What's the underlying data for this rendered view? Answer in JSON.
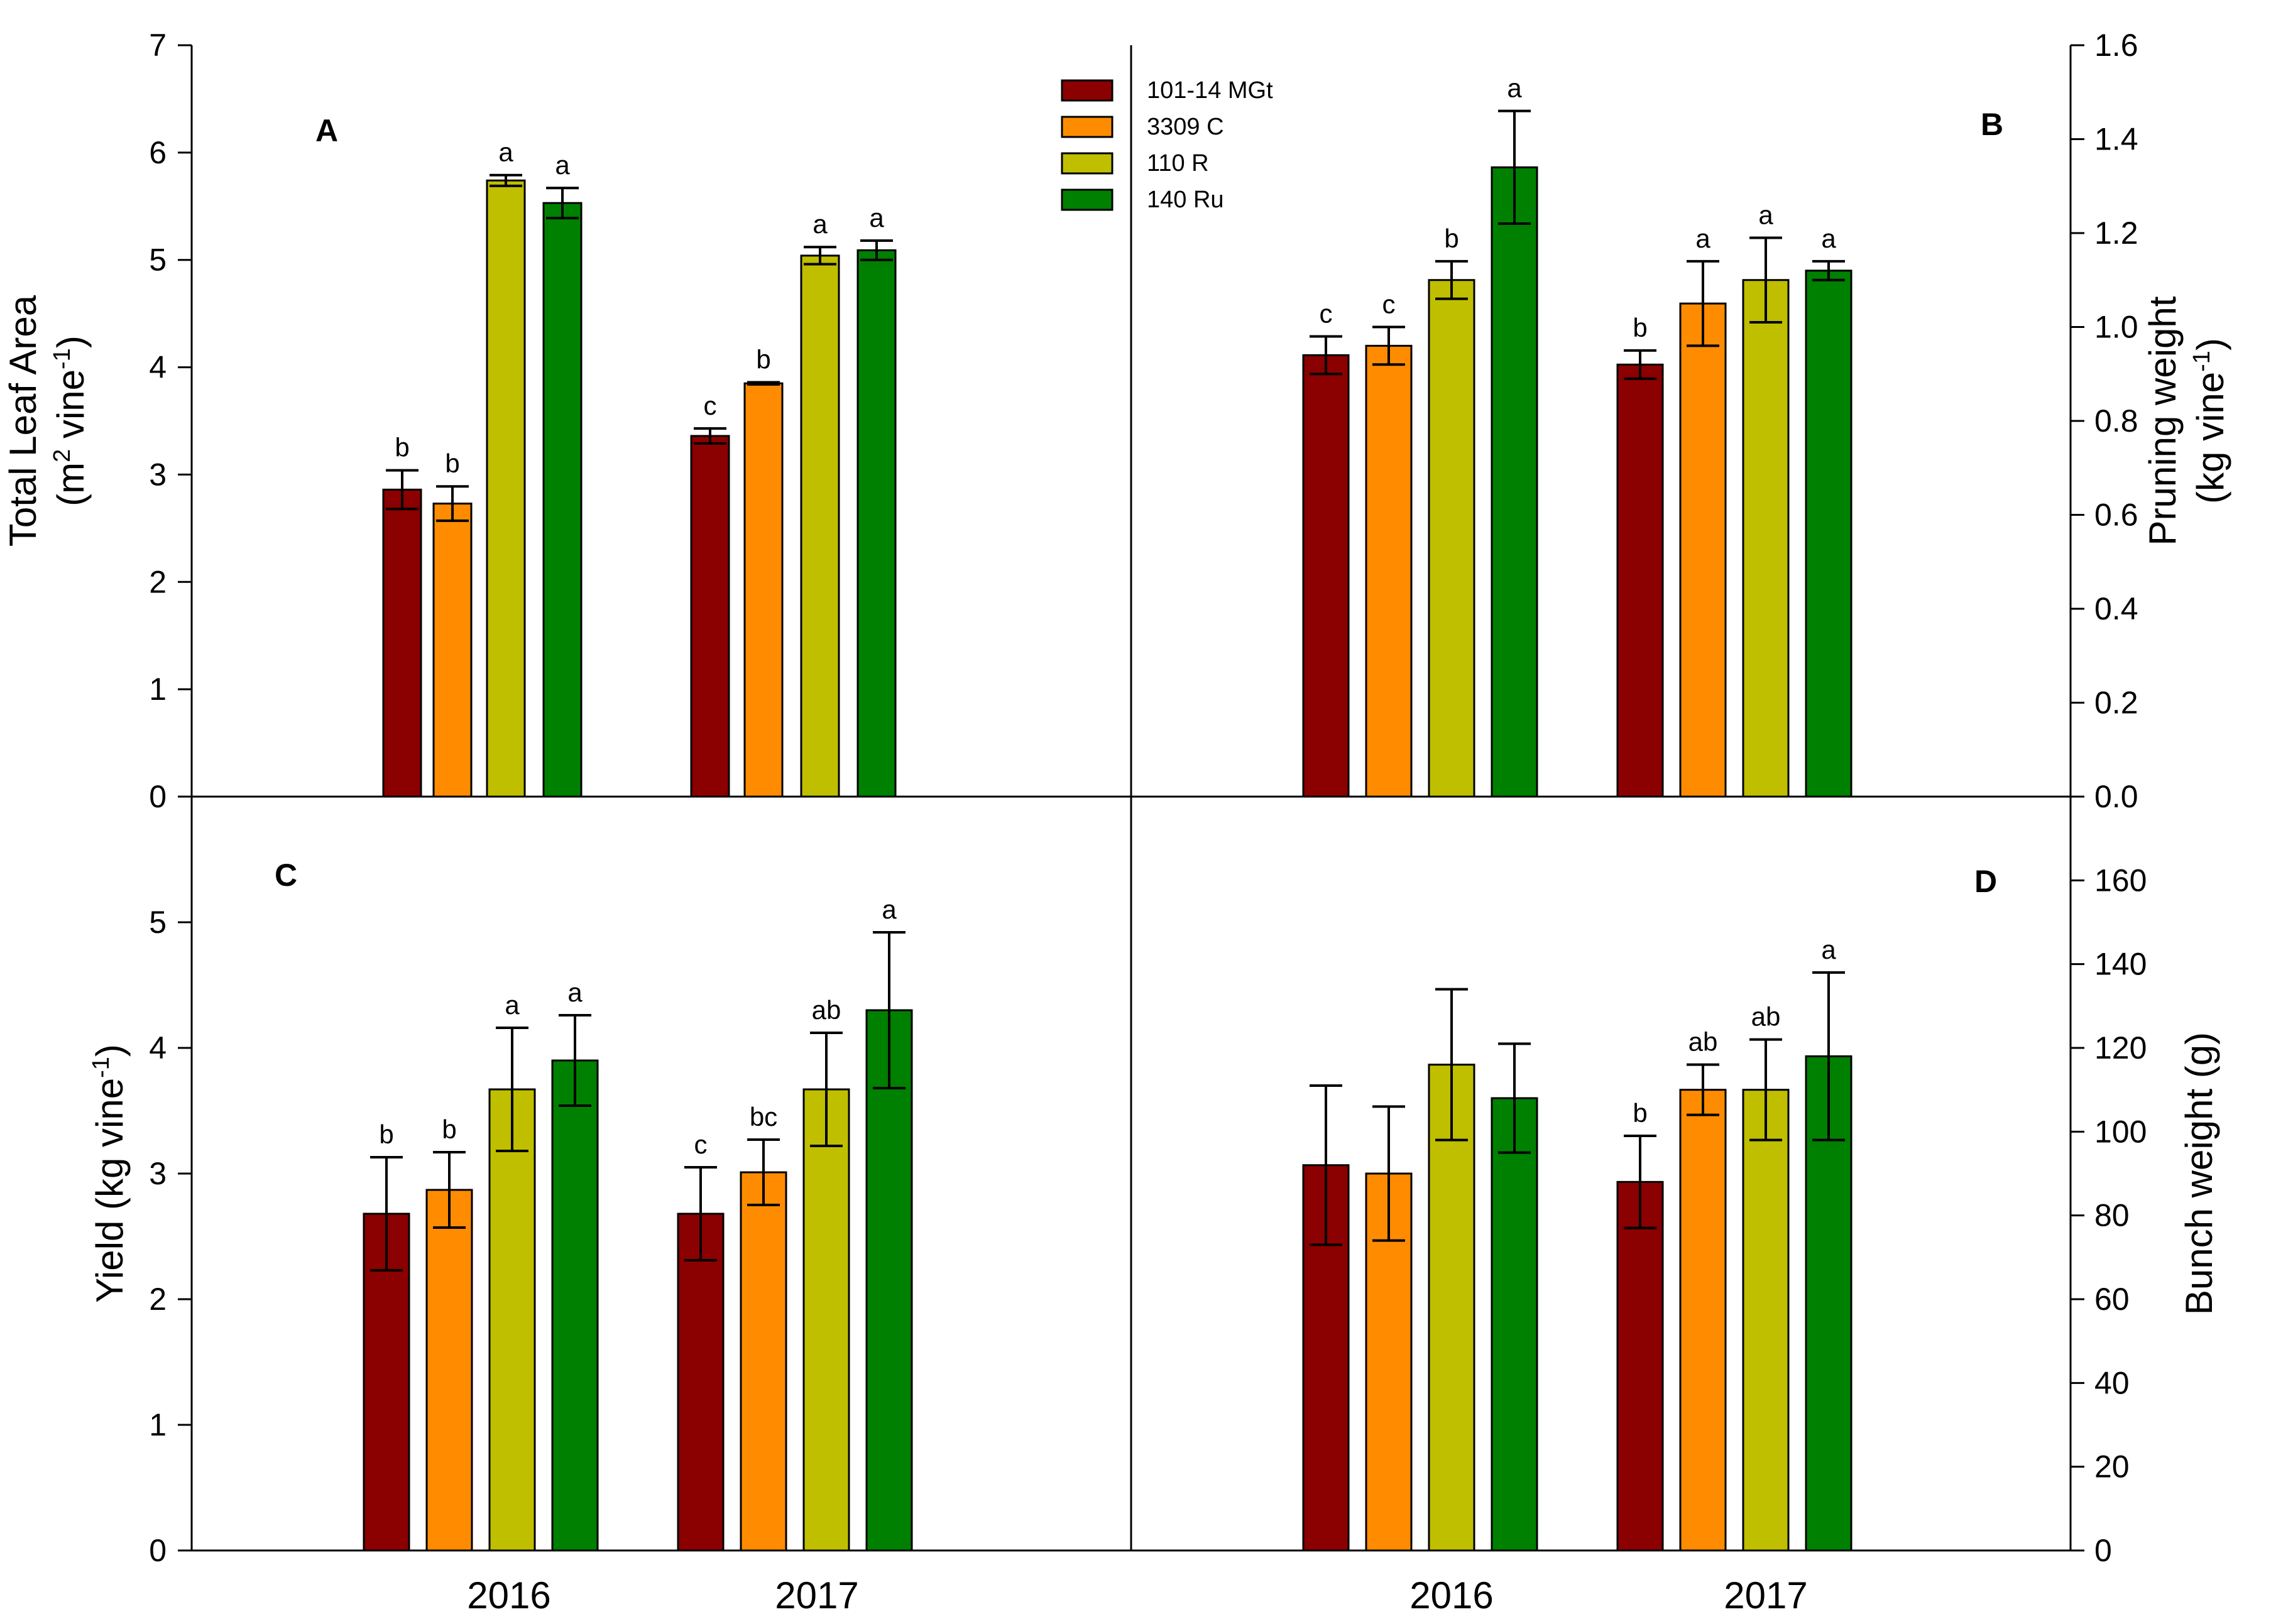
{
  "chart_data": {
    "type": "bar",
    "categories": [
      "2016",
      "2017"
    ],
    "legend": {
      "placement": "top-center",
      "entries": [
        {
          "name": "101-14 MGt",
          "color": "#8B0000"
        },
        {
          "name": "3309 C",
          "color": "#FF8C00"
        },
        {
          "name": "110 R",
          "color": "#BFBF00"
        },
        {
          "name": "140 Ru",
          "color": "#008000"
        }
      ]
    },
    "panels": [
      {
        "id": "A",
        "label": "A",
        "axis_side": "left",
        "ylabel_line1": "Total Leaf Area",
        "ylabel_pre": "(m",
        "ylabel_sup1": "2",
        "ylabel_mid": " vine",
        "ylabel_sup2": "-1",
        "ylabel_post": ")",
        "ylim": [
          0,
          7
        ],
        "ticks": [
          0,
          1,
          2,
          3,
          4,
          5,
          6,
          7
        ],
        "tick_labels": [
          "0",
          "1",
          "2",
          "3",
          "4",
          "5",
          "6",
          "7"
        ],
        "series": [
          {
            "name": "101-14 MGt",
            "values": [
              2.86,
              3.36
            ],
            "errors": [
              0.18,
              0.07
            ],
            "letters": [
              "b",
              "c"
            ]
          },
          {
            "name": "3309 C",
            "values": [
              2.73,
              3.85
            ],
            "errors": [
              0.16,
              0.01
            ],
            "letters": [
              "b",
              "b"
            ]
          },
          {
            "name": "110 R",
            "values": [
              5.74,
              5.04
            ],
            "errors": [
              0.05,
              0.08
            ],
            "letters": [
              "a",
              "a"
            ]
          },
          {
            "name": "140 Ru",
            "values": [
              5.53,
              5.09
            ],
            "errors": [
              0.14,
              0.09
            ],
            "letters": [
              "a",
              "a"
            ]
          }
        ]
      },
      {
        "id": "B",
        "label": "B",
        "axis_side": "right",
        "ylabel_line1": "Pruning weight",
        "ylabel_pre": "(kg vine",
        "ylabel_sup1": "-1",
        "ylabel_mid": "",
        "ylabel_sup2": "",
        "ylabel_post": ")",
        "ylim": [
          0,
          1.6
        ],
        "ticks": [
          0,
          0.2,
          0.4,
          0.6,
          0.8,
          1.0,
          1.2,
          1.4,
          1.6
        ],
        "tick_labels": [
          "0.0",
          "0.2",
          "0.4",
          "0.6",
          "0.8",
          "1.0",
          "1.2",
          "1.4",
          "1.6"
        ],
        "series": [
          {
            "name": "101-14 MGt",
            "values": [
              0.94,
              0.92
            ],
            "errors": [
              0.04,
              0.03
            ],
            "letters": [
              "c",
              "b"
            ]
          },
          {
            "name": "3309 C",
            "values": [
              0.96,
              1.05
            ],
            "errors": [
              0.04,
              0.09
            ],
            "letters": [
              "c",
              "a"
            ]
          },
          {
            "name": "110 R",
            "values": [
              1.1,
              1.1
            ],
            "errors": [
              0.04,
              0.09
            ],
            "letters": [
              "b",
              "a"
            ]
          },
          {
            "name": "140 Ru",
            "values": [
              1.34,
              1.12
            ],
            "errors": [
              0.12,
              0.02
            ],
            "letters": [
              "a",
              "a"
            ]
          }
        ]
      },
      {
        "id": "C",
        "label": "C",
        "axis_side": "left",
        "ylabel_line1": "",
        "ylabel_pre": "Yield (kg vine",
        "ylabel_sup1": "-1",
        "ylabel_mid": "",
        "ylabel_sup2": "",
        "ylabel_post": ")",
        "ylim": [
          0,
          6
        ],
        "ticks": [
          0,
          1,
          2,
          3,
          4,
          5
        ],
        "tick_labels": [
          "0",
          "1",
          "2",
          "3",
          "4",
          "5"
        ],
        "series": [
          {
            "name": "101-14 MGt",
            "values": [
              2.68,
              2.68
            ],
            "errors": [
              0.45,
              0.37
            ],
            "letters": [
              "b",
              "c"
            ]
          },
          {
            "name": "3309 C",
            "values": [
              2.87,
              3.01
            ],
            "errors": [
              0.3,
              0.26
            ],
            "letters": [
              "b",
              "bc"
            ]
          },
          {
            "name": "110 R",
            "values": [
              3.67,
              3.67
            ],
            "errors": [
              0.49,
              0.45
            ],
            "letters": [
              "a",
              "ab"
            ]
          },
          {
            "name": "140 Ru",
            "values": [
              3.9,
              4.3
            ],
            "errors": [
              0.36,
              0.62
            ],
            "letters": [
              "a",
              "a"
            ]
          }
        ]
      },
      {
        "id": "D",
        "label": "D",
        "axis_side": "right",
        "ylabel_line1": "",
        "ylabel_pre": "Bunch weight (g)",
        "ylabel_sup1": "",
        "ylabel_mid": "",
        "ylabel_sup2": "",
        "ylabel_post": "",
        "ylim": [
          0,
          180
        ],
        "ticks": [
          0,
          20,
          40,
          60,
          80,
          100,
          120,
          140,
          160
        ],
        "tick_labels": [
          "0",
          "20",
          "40",
          "60",
          "80",
          "100",
          "120",
          "140",
          "160"
        ],
        "series": [
          {
            "name": "101-14 MGt",
            "values": [
              92,
              88
            ],
            "errors": [
              19,
              11
            ],
            "letters": [
              "",
              "b"
            ]
          },
          {
            "name": "3309 C",
            "values": [
              90,
              110
            ],
            "errors": [
              16,
              6
            ],
            "letters": [
              "",
              "ab"
            ]
          },
          {
            "name": "110 R",
            "values": [
              116,
              110
            ],
            "errors": [
              18,
              12
            ],
            "letters": [
              "",
              "ab"
            ]
          },
          {
            "name": "140 Ru",
            "values": [
              108,
              118
            ],
            "errors": [
              13,
              20
            ],
            "letters": [
              "",
              "a"
            ]
          }
        ]
      }
    ]
  }
}
